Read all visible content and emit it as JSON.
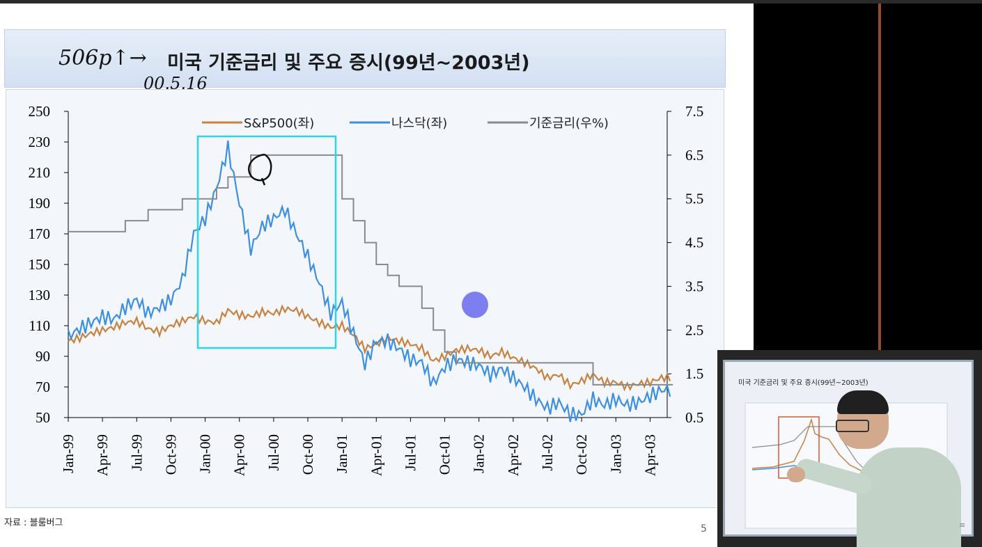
{
  "slide": {
    "title": "미국 기준금리 및 주요 증시(99년~2003년)",
    "annotation_main": "506p↑→",
    "annotation_date": "00.5.16",
    "source": "자료 : 블룸버그",
    "page_number": "5"
  },
  "colors": {
    "sp500": "#c8823f",
    "nasdaq": "#3d8fe0",
    "rate": "#8a8a8a",
    "highlight_box": "#2ad6e6",
    "pointer_dot": "#7d7ff0"
  },
  "chart_data": {
    "type": "line",
    "title": "",
    "x_ticks": [
      "Jan-99",
      "Apr-99",
      "Jul-99",
      "Oct-99",
      "Jan-00",
      "Apr-00",
      "Jul-00",
      "Oct-00",
      "Jan-01",
      "Apr-01",
      "Jul-01",
      "Oct-01",
      "Jan-02",
      "Apr-02",
      "Jul-02",
      "Oct-02",
      "Jan-03",
      "Apr-03"
    ],
    "y_left": {
      "min": 50,
      "max": 250,
      "ticks": [
        250,
        230,
        210,
        190,
        170,
        150,
        130,
        110,
        90,
        70,
        50
      ]
    },
    "y_right": {
      "min": 0.5,
      "max": 7.5,
      "ticks": [
        "7.5",
        "6.5",
        "5.5",
        "4.5",
        "3.5",
        "2.5",
        "1.5",
        "0.5"
      ]
    },
    "legend": {
      "placement": "top"
    },
    "series": [
      {
        "name": "S&P500(좌)",
        "axis": "left",
        "x": [
          "1999-01",
          "1999-02",
          "1999-03",
          "1999-04",
          "1999-05",
          "1999-06",
          "1999-07",
          "1999-08",
          "1999-09",
          "1999-10",
          "1999-11",
          "1999-12",
          "2000-01",
          "2000-02",
          "2000-03",
          "2000-04",
          "2000-05",
          "2000-06",
          "2000-07",
          "2000-08",
          "2000-09",
          "2000-10",
          "2000-11",
          "2000-12",
          "2001-01",
          "2001-02",
          "2001-03",
          "2001-04",
          "2001-05",
          "2001-06",
          "2001-07",
          "2001-08",
          "2001-09",
          "2001-10",
          "2001-11",
          "2001-12",
          "2002-01",
          "2002-02",
          "2002-03",
          "2002-04",
          "2002-05",
          "2002-06",
          "2002-07",
          "2002-08",
          "2002-09",
          "2002-10",
          "2002-11",
          "2002-12",
          "2003-01",
          "2003-02",
          "2003-03",
          "2003-04",
          "2003-05"
        ],
        "values": [
          100,
          102,
          105,
          107,
          109,
          112,
          113,
          108,
          106,
          110,
          113,
          116,
          113,
          112,
          120,
          117,
          116,
          119,
          118,
          121,
          120,
          116,
          112,
          109,
          110,
          104,
          95,
          98,
          102,
          100,
          98,
          95,
          87,
          90,
          94,
          95,
          94,
          90,
          93,
          89,
          86,
          82,
          76,
          78,
          71,
          74,
          78,
          73,
          73,
          70,
          72,
          73,
          76
        ]
      },
      {
        "name": "나스닥(좌)",
        "axis": "left",
        "x": [
          "1999-01",
          "1999-02",
          "1999-03",
          "1999-04",
          "1999-05",
          "1999-06",
          "1999-07",
          "1999-08",
          "1999-09",
          "1999-10",
          "1999-11",
          "1999-12",
          "2000-01",
          "2000-02",
          "2000-03",
          "2000-04",
          "2000-05",
          "2000-06",
          "2000-07",
          "2000-08",
          "2000-09",
          "2000-10",
          "2000-11",
          "2000-12",
          "2001-01",
          "2001-02",
          "2001-03",
          "2001-04",
          "2001-05",
          "2001-06",
          "2001-07",
          "2001-08",
          "2001-09",
          "2001-10",
          "2001-11",
          "2001-12",
          "2002-01",
          "2002-02",
          "2002-03",
          "2002-04",
          "2002-05",
          "2002-06",
          "2002-07",
          "2002-08",
          "2002-09",
          "2002-10",
          "2002-11",
          "2002-12",
          "2003-01",
          "2003-02",
          "2003-03",
          "2003-04",
          "2003-05"
        ],
        "values": [
          103,
          108,
          112,
          116,
          114,
          122,
          127,
          118,
          122,
          127,
          140,
          170,
          180,
          200,
          226,
          190,
          160,
          175,
          180,
          186,
          170,
          155,
          138,
          118,
          125,
          105,
          85,
          100,
          100,
          95,
          88,
          86,
          72,
          83,
          88,
          86,
          84,
          78,
          82,
          76,
          70,
          62,
          56,
          60,
          52,
          52,
          62,
          58,
          62,
          58,
          60,
          64,
          68
        ]
      },
      {
        "name": "기준금리(우%)",
        "axis": "right",
        "x": [
          "1999-01",
          "1999-06",
          "1999-08",
          "1999-11",
          "2000-02",
          "2000-03",
          "2000-05",
          "2000-12",
          "2001-01",
          "2001-02",
          "2001-03",
          "2001-04",
          "2001-05",
          "2001-06",
          "2001-08",
          "2001-09",
          "2001-10",
          "2001-11",
          "2001-12",
          "2002-10",
          "2002-11",
          "2003-06"
        ],
        "values": [
          4.75,
          5.0,
          5.25,
          5.5,
          5.75,
          6.0,
          6.5,
          6.5,
          5.5,
          5.0,
          4.5,
          4.0,
          3.75,
          3.5,
          3.0,
          2.5,
          2.0,
          1.75,
          1.75,
          1.75,
          1.25,
          1.25
        ]
      }
    ]
  },
  "pip": {
    "title": "미국 기준금리 및 주요 증시(99년~2003년)"
  }
}
